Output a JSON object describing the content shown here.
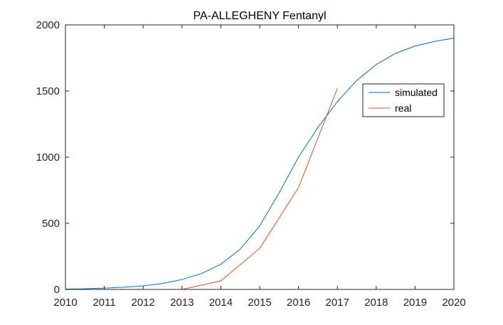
{
  "chart_data": {
    "type": "line",
    "title": "PA-ALLEGHENY Fentanyl",
    "xlabel": "",
    "ylabel": "",
    "xlim": [
      2010,
      2020
    ],
    "ylim": [
      0,
      2000
    ],
    "xticks": [
      2010,
      2011,
      2012,
      2013,
      2014,
      2015,
      2016,
      2017,
      2018,
      2019,
      2020
    ],
    "yticks": [
      0,
      500,
      1000,
      1500,
      2000
    ],
    "grid": false,
    "legend_position": "upper-right",
    "series": [
      {
        "name": "simulated",
        "color": "#0072BD",
        "x": [
          2010,
          2010.5,
          2011,
          2011.5,
          2012,
          2012.5,
          2013,
          2013.5,
          2014,
          2014.5,
          2015,
          2015.5,
          2016,
          2016.5,
          2017,
          2017.5,
          2018,
          2018.5,
          2019,
          2019.5,
          2020
        ],
        "y": [
          3,
          5,
          10,
          17,
          27,
          45,
          75,
          120,
          190,
          305,
          480,
          730,
          1000,
          1225,
          1420,
          1580,
          1700,
          1785,
          1840,
          1875,
          1900
        ]
      },
      {
        "name": "real",
        "color": "#D95319",
        "x": [
          2010,
          2011,
          2012,
          2013,
          2014,
          2015,
          2016,
          2017
        ],
        "y": [
          0,
          0,
          0,
          0,
          65,
          310,
          770,
          1520
        ]
      }
    ]
  }
}
